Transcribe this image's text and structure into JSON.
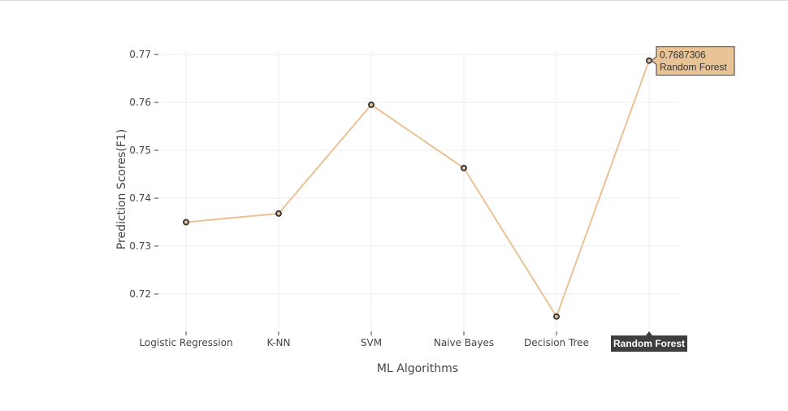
{
  "chart_data": {
    "type": "line",
    "xlabel": "ML Algorithms",
    "ylabel": "Prediction Scores(F1)",
    "categories": [
      "Logistic Regression",
      "K-NN",
      "SVM",
      "Naive Bayes",
      "Decision Tree",
      "Random Forest"
    ],
    "series": [
      {
        "values": [
          0.735,
          0.7368,
          0.7595,
          0.7463,
          0.7153,
          0.7687306
        ]
      }
    ],
    "yticks": [
      "0.72",
      "0.73",
      "0.74",
      "0.75",
      "0.76",
      "0.77"
    ],
    "ylim": [
      0.7122,
      0.7712
    ],
    "grid": true,
    "legend": "none",
    "colors": {
      "line": "#E8C396",
      "marker_fill": "#E8C396",
      "marker_edge": "#3a3a3a",
      "hover_fill": "#E8C396",
      "hover_x_fill": "#3f3f3f"
    },
    "hover": {
      "category": "Random Forest",
      "value_label": "0.7687306",
      "name_label": "Random Forest"
    }
  }
}
